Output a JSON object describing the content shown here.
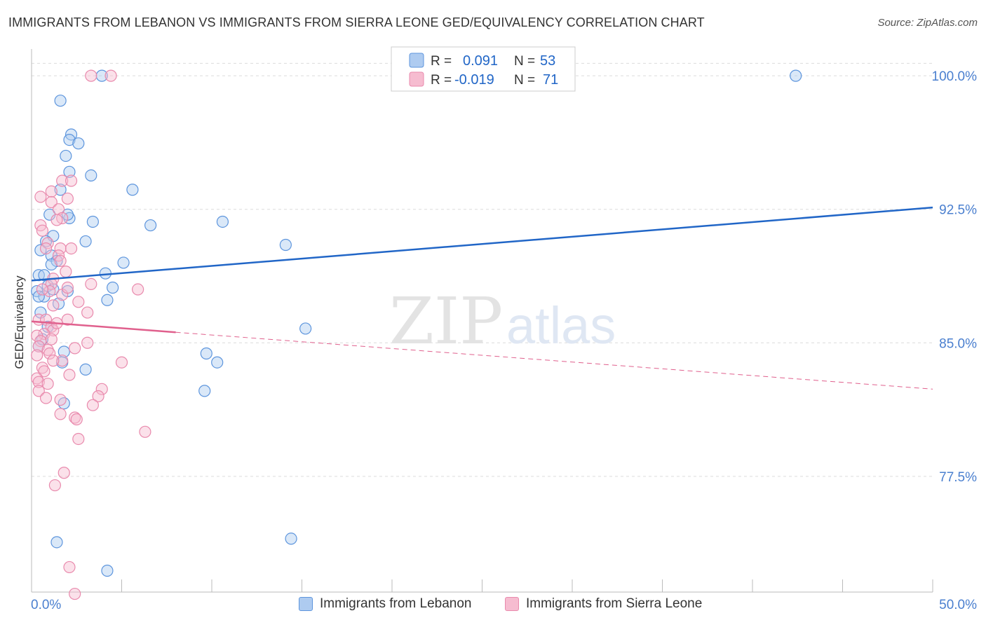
{
  "title": "IMMIGRANTS FROM LEBANON VS IMMIGRANTS FROM SIERRA LEONE GED/EQUIVALENCY CORRELATION CHART",
  "source": "Source: ZipAtlas.com",
  "watermark": {
    "zip": "ZIP",
    "atlas": "atlas"
  },
  "colors": {
    "blue_fill": "#aecbf0",
    "blue_stroke": "#5d95dd",
    "blue_line": "#2166c7",
    "pink_fill": "#f6bcd0",
    "pink_stroke": "#e98aad",
    "pink_line": "#e0608d",
    "axis_label": "#4a7fcf",
    "grid": "#dcdcdc"
  },
  "legend_top": [
    {
      "r_label": "R =",
      "r_value": "0.091",
      "n_label": "N =",
      "n_value": "53"
    },
    {
      "r_label": "R =",
      "r_value": "-0.019",
      "n_label": "N =",
      "n_value": "71"
    }
  ],
  "chart_data": {
    "type": "scatter",
    "title": "IMMIGRANTS FROM LEBANON VS IMMIGRANTS FROM SIERRA LEONE GED/EQUIVALENCY CORRELATION CHART",
    "xlabel": "",
    "ylabel": "GED/Equivalency",
    "xlim": [
      0,
      50
    ],
    "ylim": [
      71.0,
      101.5
    ],
    "x_tick_labels": [
      "0.0%",
      "50.0%"
    ],
    "y_ticks": [
      77.5,
      85.0,
      92.5,
      100.0
    ],
    "y_tick_labels": [
      "77.5%",
      "85.0%",
      "92.5%",
      "100.0%"
    ],
    "grid": true,
    "series": [
      {
        "name": "Immigrants from Lebanon",
        "color": "blue",
        "regression": {
          "x": [
            0,
            50
          ],
          "y": [
            88.5,
            92.6
          ],
          "dashed_from": null
        },
        "points": [
          [
            1.6,
            98.6
          ],
          [
            2.2,
            96.7
          ],
          [
            2.1,
            96.4
          ],
          [
            2.6,
            96.2
          ],
          [
            1.9,
            95.5
          ],
          [
            2.1,
            94.6
          ],
          [
            3.3,
            94.4
          ],
          [
            5.6,
            93.6
          ],
          [
            1.6,
            93.6
          ],
          [
            1.0,
            92.2
          ],
          [
            2.1,
            92.0
          ],
          [
            3.4,
            91.8
          ],
          [
            6.6,
            91.6
          ],
          [
            10.6,
            91.8
          ],
          [
            1.2,
            91.0
          ],
          [
            0.8,
            90.7
          ],
          [
            3.0,
            90.7
          ],
          [
            0.5,
            90.2
          ],
          [
            1.1,
            89.9
          ],
          [
            1.4,
            89.6
          ],
          [
            5.1,
            89.5
          ],
          [
            14.1,
            90.5
          ],
          [
            0.4,
            88.8
          ],
          [
            0.7,
            88.8
          ],
          [
            4.1,
            88.9
          ],
          [
            0.9,
            88.2
          ],
          [
            0.3,
            87.9
          ],
          [
            1.2,
            88.0
          ],
          [
            2.0,
            87.9
          ],
          [
            4.5,
            88.1
          ],
          [
            0.7,
            87.6
          ],
          [
            0.4,
            87.6
          ],
          [
            1.5,
            87.2
          ],
          [
            0.5,
            86.7
          ],
          [
            4.2,
            87.4
          ],
          [
            1.8,
            84.5
          ],
          [
            1.7,
            83.9
          ],
          [
            3.0,
            83.5
          ],
          [
            9.7,
            84.4
          ],
          [
            10.3,
            83.9
          ],
          [
            0.4,
            84.8
          ],
          [
            15.2,
            85.8
          ],
          [
            9.6,
            82.3
          ],
          [
            1.8,
            81.6
          ],
          [
            1.4,
            73.8
          ],
          [
            14.4,
            74.0
          ],
          [
            4.2,
            72.2
          ],
          [
            3.9,
            100.0
          ],
          [
            42.4,
            100.0
          ],
          [
            0.9,
            85.9
          ],
          [
            2.0,
            92.2
          ],
          [
            1.1,
            89.4
          ],
          [
            0.6,
            85.2
          ]
        ]
      },
      {
        "name": "Immigrants from Sierra Leone",
        "color": "pink",
        "regression": {
          "x": [
            0,
            50
          ],
          "y": [
            86.2,
            82.4
          ],
          "dashed_from": 8
        },
        "points": [
          [
            3.3,
            100.0
          ],
          [
            4.4,
            100.0
          ],
          [
            1.7,
            94.1
          ],
          [
            2.2,
            94.1
          ],
          [
            1.1,
            93.5
          ],
          [
            2.0,
            93.1
          ],
          [
            0.5,
            93.2
          ],
          [
            1.1,
            92.9
          ],
          [
            1.5,
            92.5
          ],
          [
            1.7,
            92.0
          ],
          [
            1.4,
            91.9
          ],
          [
            0.5,
            91.6
          ],
          [
            0.6,
            91.3
          ],
          [
            0.9,
            90.6
          ],
          [
            1.6,
            90.3
          ],
          [
            2.2,
            90.3
          ],
          [
            0.8,
            90.3
          ],
          [
            1.5,
            89.9
          ],
          [
            1.6,
            89.6
          ],
          [
            3.3,
            88.3
          ],
          [
            1.2,
            88.6
          ],
          [
            1.1,
            88.3
          ],
          [
            1.0,
            87.9
          ],
          [
            5.9,
            88.0
          ],
          [
            1.7,
            87.7
          ],
          [
            1.2,
            87.1
          ],
          [
            2.6,
            87.3
          ],
          [
            3.1,
            86.7
          ],
          [
            0.4,
            86.3
          ],
          [
            0.8,
            86.3
          ],
          [
            1.1,
            85.9
          ],
          [
            1.2,
            85.7
          ],
          [
            0.7,
            85.5
          ],
          [
            0.3,
            85.4
          ],
          [
            0.5,
            85.1
          ],
          [
            1.1,
            85.2
          ],
          [
            0.4,
            84.8
          ],
          [
            0.9,
            84.6
          ],
          [
            0.3,
            84.3
          ],
          [
            1.0,
            84.4
          ],
          [
            1.7,
            84.0
          ],
          [
            1.2,
            84.0
          ],
          [
            0.6,
            83.6
          ],
          [
            0.7,
            83.4
          ],
          [
            2.1,
            83.2
          ],
          [
            0.3,
            83.0
          ],
          [
            0.4,
            82.8
          ],
          [
            0.9,
            82.7
          ],
          [
            0.4,
            82.3
          ],
          [
            3.9,
            82.4
          ],
          [
            3.7,
            82.0
          ],
          [
            0.8,
            81.9
          ],
          [
            1.6,
            81.8
          ],
          [
            3.4,
            81.5
          ],
          [
            1.6,
            81.0
          ],
          [
            2.4,
            80.8
          ],
          [
            2.5,
            80.7
          ],
          [
            6.3,
            80.0
          ],
          [
            2.6,
            79.6
          ],
          [
            1.8,
            77.7
          ],
          [
            1.3,
            77.0
          ],
          [
            2.1,
            72.4
          ],
          [
            2.4,
            70.9
          ],
          [
            5.0,
            83.9
          ],
          [
            2.0,
            86.3
          ],
          [
            2.0,
            88.1
          ],
          [
            1.9,
            89.0
          ],
          [
            2.4,
            84.7
          ],
          [
            3.1,
            85.0
          ],
          [
            0.6,
            88.0
          ],
          [
            1.4,
            86.1
          ]
        ]
      }
    ]
  },
  "legend_bottom": [
    "Immigrants from Lebanon",
    "Immigrants from Sierra Leone"
  ]
}
